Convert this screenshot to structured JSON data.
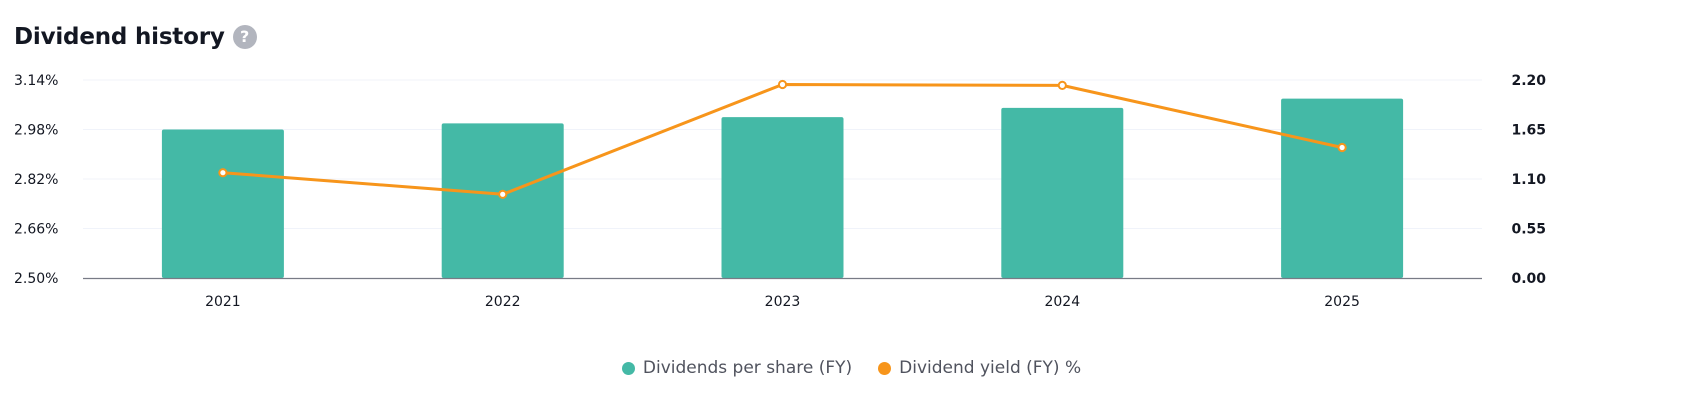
{
  "header": {
    "title": "Dividend history",
    "help_glyph": "?"
  },
  "chart_data": {
    "type": "bar",
    "categories": [
      "2021",
      "2022",
      "2023",
      "2024",
      "2025"
    ],
    "series": [
      {
        "name": "Dividends per share (FY)",
        "kind": "bar",
        "axis": "left",
        "color": "#44b9a6",
        "values": [
          2.98,
          3.0,
          3.02,
          3.05,
          3.08
        ]
      },
      {
        "name": "Dividend yield (FY) %",
        "kind": "line",
        "axis": "right",
        "color": "#f7951b",
        "values": [
          1.17,
          0.93,
          2.15,
          2.14,
          1.45
        ]
      }
    ],
    "left_axis": {
      "ticks": [
        "3.14%",
        "2.98%",
        "2.82%",
        "2.66%",
        "2.50%"
      ],
      "ylim": [
        2.5,
        3.14
      ]
    },
    "right_axis": {
      "ticks": [
        "2.20",
        "1.65",
        "1.10",
        "0.55",
        "0.00"
      ],
      "ylim": [
        0.0,
        2.2
      ]
    },
    "grid": true,
    "legend_position": "bottom-center"
  }
}
